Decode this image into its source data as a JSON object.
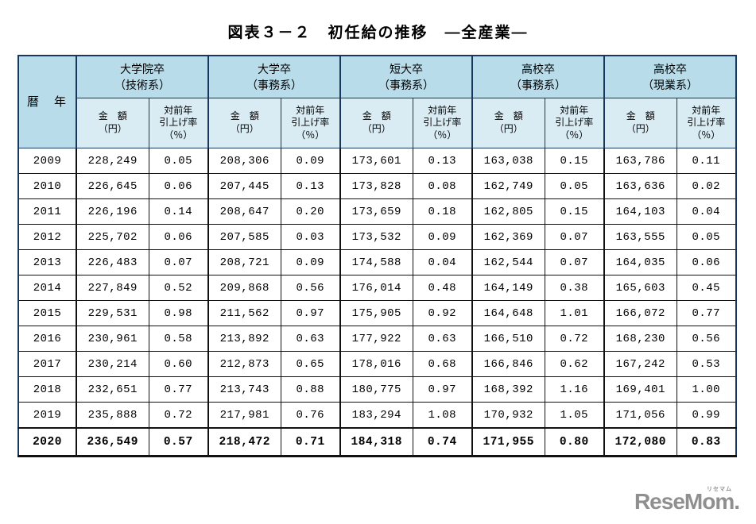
{
  "page": {
    "title": "図表３－２　初任給の推移　―全産業―"
  },
  "table": {
    "year_header": "暦　年",
    "groups": [
      {
        "name": "大学院卒",
        "category": "（技術系）"
      },
      {
        "name": "大学卒",
        "category": "（事務系）"
      },
      {
        "name": "短大卒",
        "category": "（事務系）"
      },
      {
        "name": "高校卒",
        "category": "（事務系）"
      },
      {
        "name": "高校卒",
        "category": "（現業系）"
      }
    ],
    "sub_amount_lines": [
      "金　額",
      "（円）"
    ],
    "sub_rate_lines": [
      "対前年",
      "引上げ率",
      "（％）"
    ],
    "rows": [
      {
        "year": "2009",
        "values": [
          "228,249",
          "0.05",
          "208,306",
          "0.09",
          "173,601",
          "0.13",
          "163,038",
          "0.15",
          "163,786",
          "0.11"
        ]
      },
      {
        "year": "2010",
        "values": [
          "226,645",
          "0.06",
          "207,445",
          "0.13",
          "173,828",
          "0.08",
          "162,749",
          "0.05",
          "163,636",
          "0.02"
        ]
      },
      {
        "year": "2011",
        "values": [
          "226,196",
          "0.14",
          "208,647",
          "0.20",
          "173,659",
          "0.18",
          "162,805",
          "0.15",
          "164,103",
          "0.04"
        ]
      },
      {
        "year": "2012",
        "values": [
          "225,702",
          "0.06",
          "207,585",
          "0.03",
          "173,532",
          "0.09",
          "162,369",
          "0.07",
          "163,555",
          "0.05"
        ]
      },
      {
        "year": "2013",
        "values": [
          "226,483",
          "0.07",
          "208,721",
          "0.09",
          "174,588",
          "0.04",
          "162,544",
          "0.07",
          "164,035",
          "0.06"
        ]
      },
      {
        "year": "2014",
        "values": [
          "227,849",
          "0.52",
          "209,868",
          "0.56",
          "176,014",
          "0.48",
          "164,149",
          "0.38",
          "165,603",
          "0.45"
        ]
      },
      {
        "year": "2015",
        "values": [
          "229,531",
          "0.98",
          "211,562",
          "0.97",
          "175,905",
          "0.92",
          "164,648",
          "1.01",
          "166,072",
          "0.77"
        ]
      },
      {
        "year": "2016",
        "values": [
          "230,961",
          "0.58",
          "213,892",
          "0.63",
          "177,922",
          "0.63",
          "166,510",
          "0.72",
          "168,230",
          "0.56"
        ]
      },
      {
        "year": "2017",
        "values": [
          "230,214",
          "0.60",
          "212,873",
          "0.65",
          "178,016",
          "0.68",
          "166,846",
          "0.62",
          "167,242",
          "0.53"
        ]
      },
      {
        "year": "2018",
        "values": [
          "232,651",
          "0.77",
          "213,743",
          "0.88",
          "180,775",
          "0.97",
          "168,392",
          "1.16",
          "169,401",
          "1.00"
        ]
      },
      {
        "year": "2019",
        "values": [
          "235,888",
          "0.72",
          "217,981",
          "0.76",
          "183,294",
          "1.08",
          "170,932",
          "1.05",
          "171,056",
          "0.99"
        ]
      }
    ],
    "total_row": {
      "year": "2020",
      "values": [
        "236,549",
        "0.57",
        "218,472",
        "0.71",
        "184,318",
        "0.74",
        "171,955",
        "0.80",
        "172,080",
        "0.83"
      ]
    }
  },
  "colors": {
    "header_bg": "#b9dcea",
    "subheader_bg": "#d9ecf4",
    "header_border": "#17375e",
    "logo_gray": "#8f8f8f"
  },
  "logo": {
    "text": "ReseMom",
    "dot": ".",
    "ruby": "リセマム"
  }
}
